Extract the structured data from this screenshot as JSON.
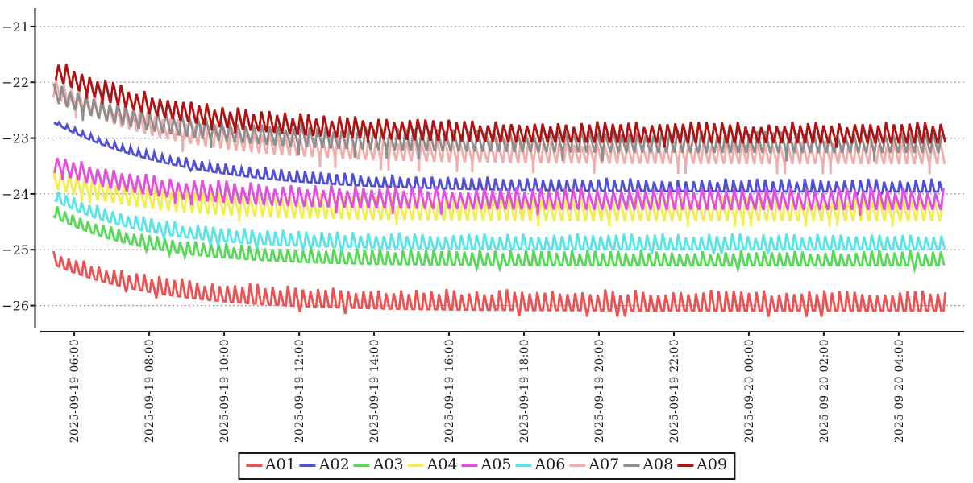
{
  "page": {
    "background_color": "#ffffff"
  },
  "axes": {
    "axis_color": "#1a1a1a",
    "grid_color": "#999999",
    "tick_label_color": "#1a1a1a",
    "grid_style": "dashed-horizontal"
  },
  "legend": {
    "border_color": "#1a1a1a",
    "position": "bottom-center"
  },
  "chart_data": {
    "type": "line",
    "title": "",
    "xlabel": "",
    "ylabel": "",
    "x_tick_labels": [
      "2025-09-19 06:00",
      "2025-09-19 08:00",
      "2025-09-19 10:00",
      "2025-09-19 12:00",
      "2025-09-19 14:00",
      "2025-09-19 16:00",
      "2025-09-19 18:00",
      "2025-09-19 20:00",
      "2025-09-19 22:00",
      "2025-09-20 00:00",
      "2025-09-20 02:00",
      "2025-09-20 04:00"
    ],
    "x_ticks_min": [
      35,
      155,
      275,
      395,
      515,
      635,
      755,
      875,
      995,
      1115,
      1235,
      1355
    ],
    "time_span_min": 1430,
    "y_ticks": [
      -21,
      -22,
      -23,
      -24,
      -25,
      -26
    ],
    "y_tick_labels": [
      "−21",
      "−22",
      "−23",
      "−24",
      "−25",
      "−26"
    ],
    "ylim": [
      -26.41,
      -20.67
    ],
    "grid": true,
    "legend_position": "bottom-center",
    "pattern": "Nine sensor series sampled ~every 12.5 min over ~24 h; each decays exponentially from a start value to a settled value with a sawtooth oscillation and occasional deeper dips.",
    "series": [
      {
        "name": "A01",
        "color": "#ee5152",
        "start_value": -25.15,
        "settled_value": -25.93,
        "decay_tau_min": 170,
        "osc_amp_start": 0.1,
        "osc_amp_end": 0.16,
        "osc_period_min": 12.1,
        "phase": 0.1,
        "seed": 1,
        "dip_prob": 0.12,
        "dip_depth": 1.7,
        "dwell": 0.3
      },
      {
        "name": "A02",
        "color": "#4f4fd8",
        "start_value": -22.68,
        "settled_value": -23.86,
        "decay_tau_min": 205,
        "osc_amp_start": 0.03,
        "osc_amp_end": 0.1,
        "osc_period_min": 12.7,
        "phase": 0.35,
        "seed": 2,
        "dip_prob": 0.06,
        "dip_depth": 1.6,
        "dwell": 0.45
      },
      {
        "name": "A03",
        "color": "#57d957",
        "start_value": -24.3,
        "settled_value": -25.16,
        "decay_tau_min": 150,
        "osc_amp_start": 0.09,
        "osc_amp_end": 0.12,
        "osc_period_min": 12.3,
        "phase": 0.62,
        "seed": 3,
        "dip_prob": 0.08,
        "dip_depth": 1.6,
        "dwell": 0.3
      },
      {
        "name": "A04",
        "color": "#f2ee52",
        "start_value": -23.72,
        "settled_value": -24.28,
        "decay_tau_min": 160,
        "osc_amp_start": 0.16,
        "osc_amp_end": 0.19,
        "osc_period_min": 12.6,
        "phase": 0.22,
        "seed": 4,
        "dip_prob": 0.1,
        "dip_depth": 1.6,
        "dwell": 0.08
      },
      {
        "name": "A05",
        "color": "#e34de0",
        "start_value": -23.45,
        "settled_value": -24.1,
        "decay_tau_min": 165,
        "osc_amp_start": 0.14,
        "osc_amp_end": 0.17,
        "osc_period_min": 12.9,
        "phase": 0.72,
        "seed": 5,
        "dip_prob": 0.08,
        "dip_depth": 1.7,
        "dwell": 0.08
      },
      {
        "name": "A06",
        "color": "#59e5e8",
        "start_value": -24.0,
        "settled_value": -24.87,
        "decay_tau_min": 150,
        "osc_amp_start": 0.09,
        "osc_amp_end": 0.12,
        "osc_period_min": 12.4,
        "phase": 0.47,
        "seed": 6,
        "dip_prob": 0.08,
        "dip_depth": 1.7,
        "dwell": 0.3
      },
      {
        "name": "A07",
        "color": "#f1acac",
        "start_value": -22.08,
        "settled_value": -23.27,
        "decay_tau_min": 185,
        "osc_amp_start": 0.16,
        "osc_amp_end": 0.18,
        "osc_period_min": 12.2,
        "phase": 0.85,
        "seed": 7,
        "dip_prob": 0.14,
        "dip_depth": 2.1,
        "dwell": 0.08
      },
      {
        "name": "A08",
        "color": "#8e8e8e",
        "start_value": -22.17,
        "settled_value": -23.08,
        "decay_tau_min": 185,
        "osc_amp_start": 0.15,
        "osc_amp_end": 0.17,
        "osc_period_min": 12.8,
        "phase": 0.15,
        "seed": 8,
        "dip_prob": 0.12,
        "dip_depth": 2.0,
        "dwell": 0.08
      },
      {
        "name": "A09",
        "color": "#b11111",
        "start_value": -21.75,
        "settled_value": -22.92,
        "decay_tau_min": 195,
        "osc_amp_start": 0.16,
        "osc_amp_end": 0.16,
        "osc_period_min": 12.5,
        "phase": 0.55,
        "seed": 9,
        "dip_prob": 0.06,
        "dip_depth": 1.6,
        "dwell": 0.08
      }
    ]
  }
}
